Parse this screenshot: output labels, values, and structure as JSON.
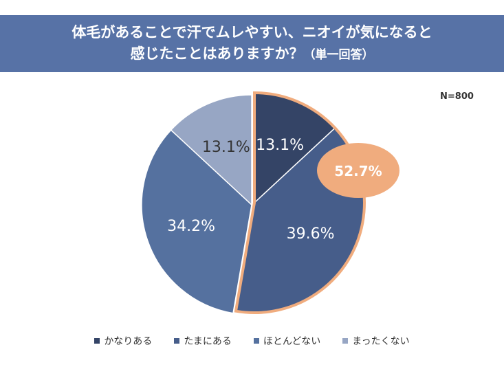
{
  "title": {
    "line1": "体毛があることで汗でムレやすい、ニオイが気になると",
    "line2": "感じたことはありますか？",
    "line2_suffix": "（単一回答）"
  },
  "sample_size": "N=800",
  "colors": {
    "title_bg": "#5772a6",
    "highlight": "#f0ac7e"
  },
  "chart_data": {
    "type": "pie",
    "title": "体毛があることで汗でムレやすい、ニオイが気になると感じたことはありますか？（単一回答）",
    "categories": [
      "かなりある",
      "たまにある",
      "ほとんどない",
      "まったくない"
    ],
    "values": [
      13.1,
      39.6,
      34.2,
      13.1
    ],
    "labels": [
      "13.1%",
      "39.6%",
      "34.2%",
      "13.1%"
    ],
    "colors": [
      "#344466",
      "#465d8a",
      "#55719f",
      "#97a6c4"
    ],
    "label_colors": [
      "#ffffff",
      "#ffffff",
      "#ffffff",
      "#333333"
    ],
    "highlight": {
      "label": "52.7%",
      "value": 52.7,
      "includes": [
        "かなりある",
        "たまにある"
      ]
    },
    "legend_position": "bottom",
    "start_angle": "top, clockwise"
  }
}
